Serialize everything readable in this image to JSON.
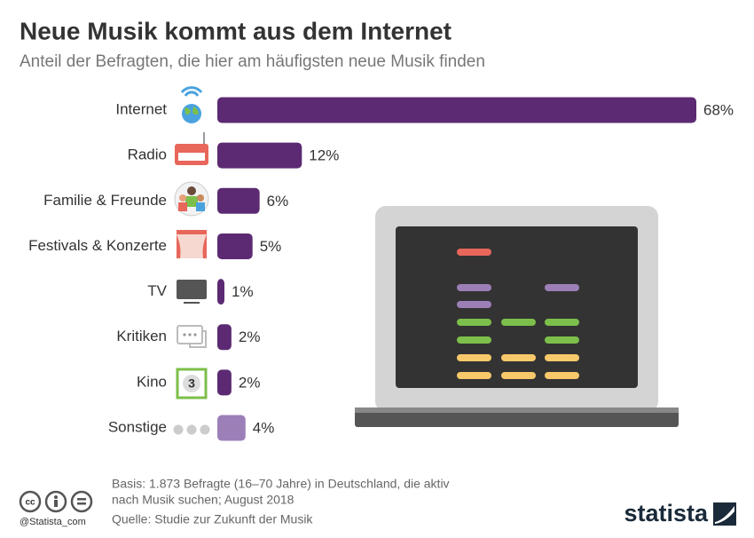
{
  "chart_data": {
    "type": "bar",
    "orientation": "horizontal",
    "title": "Neue Musik kommt aus dem Internet",
    "subtitle": "Anteil der Befragten, die hier am häufigsten neue Musik finden",
    "categories": [
      "Internet",
      "Radio",
      "Familie & Freunde",
      "Festivals & Konzerte",
      "TV",
      "Kritiken",
      "Kino",
      "Sonstige"
    ],
    "values": [
      68,
      12,
      6,
      5,
      1,
      2,
      2,
      4
    ],
    "value_labels": [
      "68%",
      "12%",
      "6%",
      "5%",
      "1%",
      "2%",
      "2%",
      "4%"
    ],
    "colors": [
      "#5c2a72",
      "#5c2a72",
      "#5c2a72",
      "#5c2a72",
      "#5c2a72",
      "#5c2a72",
      "#5c2a72",
      "#9d7fb8"
    ]
  },
  "footer": {
    "basis_lines": [
      "Basis: 1.873 Befragte (16–70 Jahre) in Deutschland, die aktiv",
      "nach Musik suchen; August 2018"
    ],
    "source": "Quelle: Studie zur Zukunft der Musik",
    "handle": "@Statista_com",
    "brand": "statista"
  }
}
